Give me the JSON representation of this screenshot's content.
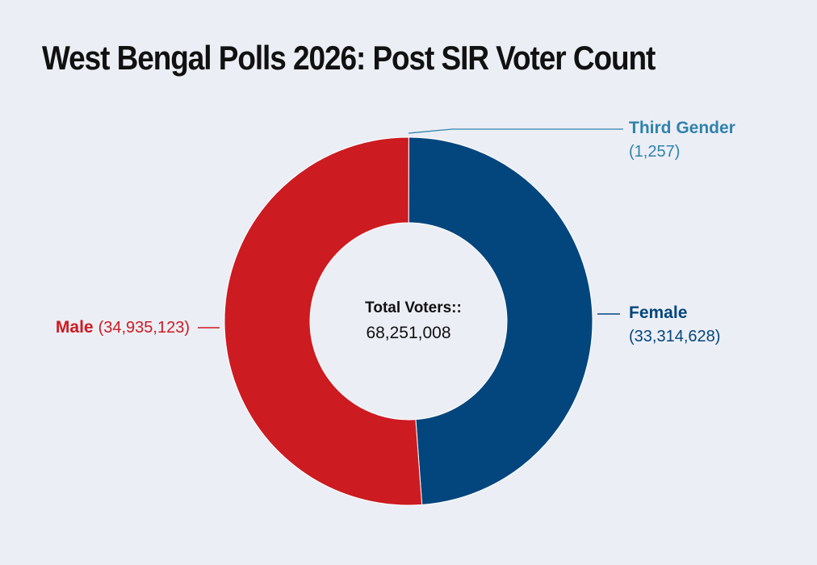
{
  "chart_data": {
    "type": "pie",
    "variant": "donut",
    "title": "West Bengal Polls 2026: Post SIR Voter Count",
    "center_label": "Total Voters::",
    "center_value": "68,251,008",
    "slices": [
      {
        "name": "Third Gender",
        "value": 1257,
        "value_label": "(1,257)",
        "color": "#2f83ad"
      },
      {
        "name": "Female",
        "value": 33314628,
        "value_label": "(33,314,628)",
        "color": "#02467d"
      },
      {
        "name": "Male",
        "value": 34935123,
        "value_label": "(34,935,123)",
        "color": "#cc1b21"
      }
    ]
  }
}
